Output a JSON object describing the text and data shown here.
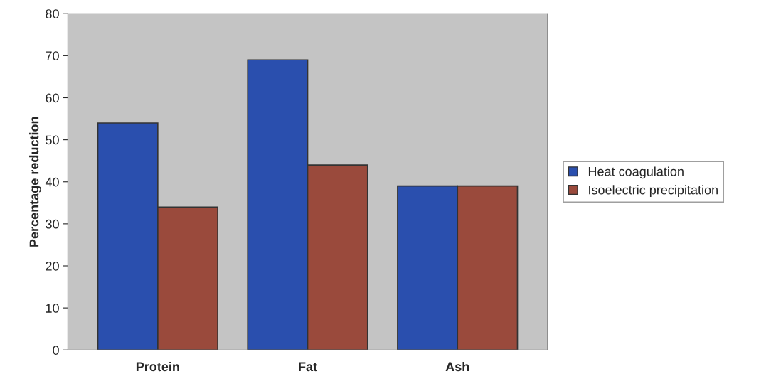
{
  "chart_data": {
    "type": "bar",
    "ylabel": "Percentage reduction",
    "categories": [
      "Protein",
      "Fat",
      "Ash"
    ],
    "series": [
      {
        "name": "Heat coagulation",
        "color": "#2a4fae",
        "values": [
          54,
          69,
          39
        ]
      },
      {
        "name": "Isoelectric precipitation",
        "color": "#9a4a3c",
        "values": [
          34,
          44,
          39
        ]
      }
    ],
    "ylim": [
      0,
      80
    ],
    "yticks": [
      0,
      10,
      20,
      30,
      40,
      50,
      60,
      70,
      80
    ],
    "grid": false,
    "legend": "right"
  }
}
